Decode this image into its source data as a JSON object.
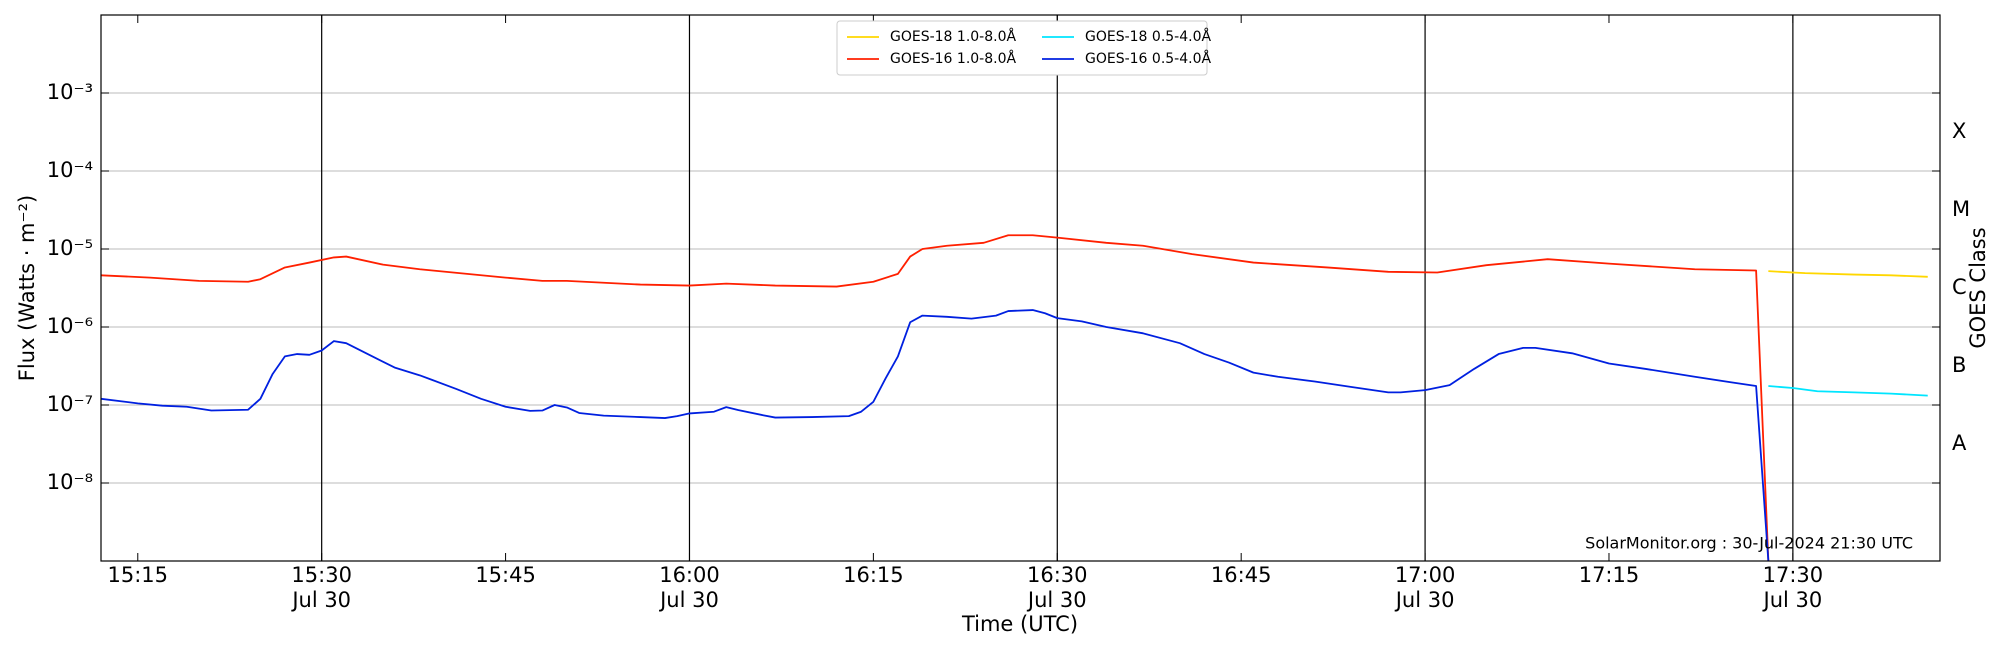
{
  "chart_data": {
    "type": "line",
    "xlabel": "Time (UTC)",
    "ylabel": "Flux (Watts · m⁻²)",
    "y2label": "GOES Class",
    "annotation": "SolarMonitor.org : 30-Jul-2024 21:30 UTC",
    "yscale": "log",
    "ylim": [
      1e-09,
      0.01
    ],
    "yticks": [
      {
        "value": 1e-08,
        "label": "10⁻⁸"
      },
      {
        "value": 1e-07,
        "label": "10⁻⁷"
      },
      {
        "value": 1e-06,
        "label": "10⁻⁶"
      },
      {
        "value": 1e-05,
        "label": "10⁻⁵"
      },
      {
        "value": 0.0001,
        "label": "10⁻⁴"
      },
      {
        "value": 0.001,
        "label": "10⁻³"
      }
    ],
    "grid": true,
    "class_labels": [
      {
        "value": 1e-08,
        "label": "A"
      },
      {
        "value": 1e-07,
        "label": "B"
      },
      {
        "value": 1e-06,
        "label": "C"
      },
      {
        "value": 1e-05,
        "label": "M"
      },
      {
        "value": 0.0001,
        "label": "X"
      }
    ],
    "xlim": [
      "15:12",
      "17:42"
    ],
    "xticks": [
      "15:15",
      {
        "value": "15:30",
        "date": "Jul 30"
      },
      "15:45",
      {
        "value": "16:00",
        "date": "Jul 30"
      },
      "16:15",
      {
        "value": "16:30",
        "date": "Jul 30"
      },
      "16:45",
      {
        "value": "17:00",
        "date": "Jul 30"
      },
      "17:15",
      {
        "value": "17:30",
        "date": "Jul 30"
      }
    ],
    "date_tick_lines": true,
    "legend": "upper center",
    "series": [
      {
        "name": "GOES-18 1.0-8.0Å",
        "color": "#ffd700",
        "x": [
          "17:28",
          "17:31",
          "17:35",
          "17:38",
          "17:41"
        ],
        "values": [
          5.2e-06,
          4.9e-06,
          4.7e-06,
          4.6e-06,
          4.4e-06
        ]
      },
      {
        "name": "GOES-16 1.0-8.0Å",
        "color": "#ff2000",
        "x": [
          "15:12",
          "15:16",
          "15:20",
          "15:24",
          "15:25",
          "15:27",
          "15:29",
          "15:31",
          "15:32",
          "15:35",
          "15:38",
          "15:45",
          "15:48",
          "15:50",
          "15:56",
          "16:00",
          "16:03",
          "16:07",
          "16:12",
          "16:15",
          "16:17",
          "16:18",
          "16:19",
          "16:21",
          "16:24",
          "16:26",
          "16:28",
          "16:30",
          "16:34",
          "16:37",
          "16:41",
          "16:46",
          "16:52",
          "16:57",
          "17:01",
          "17:05",
          "17:10",
          "17:15",
          "17:22",
          "17:27",
          "17:28"
        ],
        "values": [
          4.6e-06,
          4.3e-06,
          3.9e-06,
          3.8e-06,
          4.1e-06,
          5.8e-06,
          6.7e-06,
          7.8e-06,
          8e-06,
          6.3e-06,
          5.5e-06,
          4.3e-06,
          3.9e-06,
          3.9e-06,
          3.5e-06,
          3.4e-06,
          3.6e-06,
          3.4e-06,
          3.3e-06,
          3.8e-06,
          4.8e-06,
          8e-06,
          1e-05,
          1.1e-05,
          1.2e-05,
          1.5e-05,
          1.5e-05,
          1.4e-05,
          1.2e-05,
          1.1e-05,
          8.6e-06,
          6.7e-06,
          5.8e-06,
          5.1e-06,
          5e-06,
          6.2e-06,
          7.4e-06,
          6.5e-06,
          5.5e-06,
          5.3e-06,
          1e-09
        ]
      },
      {
        "name": "GOES-18 0.5-4.0Å",
        "color": "#00e5ff",
        "x": [
          "17:28",
          "17:30",
          "17:32",
          "17:35",
          "17:38",
          "17:41"
        ],
        "values": [
          1.75e-07,
          1.65e-07,
          1.5e-07,
          1.45e-07,
          1.4e-07,
          1.32e-07
        ]
      },
      {
        "name": "GOES-16 0.5-4.0Å",
        "color": "#0020e0",
        "x": [
          "15:12",
          "15:15",
          "15:17",
          "15:19",
          "15:21",
          "15:24",
          "15:25",
          "15:26",
          "15:27",
          "15:28",
          "15:29",
          "15:30",
          "15:31",
          "15:32",
          "15:34",
          "15:36",
          "15:38",
          "15:39",
          "15:41",
          "15:43",
          "15:45",
          "15:47",
          "15:48",
          "15:49",
          "15:50",
          "15:51",
          "15:53",
          "15:56",
          "15:58",
          "15:59",
          "16:00",
          "16:02",
          "16:03",
          "16:04",
          "16:06",
          "16:07",
          "16:10",
          "16:13",
          "16:14",
          "16:15",
          "16:16",
          "16:17",
          "16:18",
          "16:19",
          "16:21",
          "16:23",
          "16:25",
          "16:26",
          "16:28",
          "16:29",
          "16:30",
          "16:32",
          "16:34",
          "16:37",
          "16:40",
          "16:42",
          "16:44",
          "16:46",
          "16:48",
          "16:51",
          "16:54",
          "16:57",
          "16:58",
          "17:00",
          "17:02",
          "17:04",
          "17:06",
          "17:08",
          "17:09",
          "17:12",
          "17:15",
          "17:18",
          "17:22",
          "17:25",
          "17:27",
          "17:28"
        ],
        "values": [
          1.2e-07,
          1.05e-07,
          9.8e-08,
          9.5e-08,
          8.5e-08,
          8.7e-08,
          1.2e-07,
          2.5e-07,
          4.2e-07,
          4.5e-07,
          4.4e-07,
          5e-07,
          6.6e-07,
          6.2e-07,
          4.3e-07,
          3e-07,
          2.4e-07,
          2.1e-07,
          1.6e-07,
          1.2e-07,
          9.5e-08,
          8.4e-08,
          8.5e-08,
          1e-07,
          9.3e-08,
          7.9e-08,
          7.3e-08,
          7e-08,
          6.8e-08,
          7.2e-08,
          7.8e-08,
          8.2e-08,
          9.4e-08,
          8.6e-08,
          7.4e-08,
          6.9e-08,
          7e-08,
          7.2e-08,
          8.2e-08,
          1.1e-07,
          2.2e-07,
          4.2e-07,
          1.15e-06,
          1.4e-06,
          1.35e-06,
          1.28e-06,
          1.4e-06,
          1.6e-06,
          1.65e-06,
          1.5e-06,
          1.3e-06,
          1.18e-06,
          1e-06,
          8.3e-07,
          6.2e-07,
          4.5e-07,
          3.5e-07,
          2.6e-07,
          2.3e-07,
          2e-07,
          1.7e-07,
          1.45e-07,
          1.45e-07,
          1.55e-07,
          1.8e-07,
          2.9e-07,
          4.5e-07,
          5.4e-07,
          5.4e-07,
          4.6e-07,
          3.4e-07,
          2.9e-07,
          2.3e-07,
          1.95e-07,
          1.75e-07,
          1e-09
        ]
      }
    ]
  }
}
